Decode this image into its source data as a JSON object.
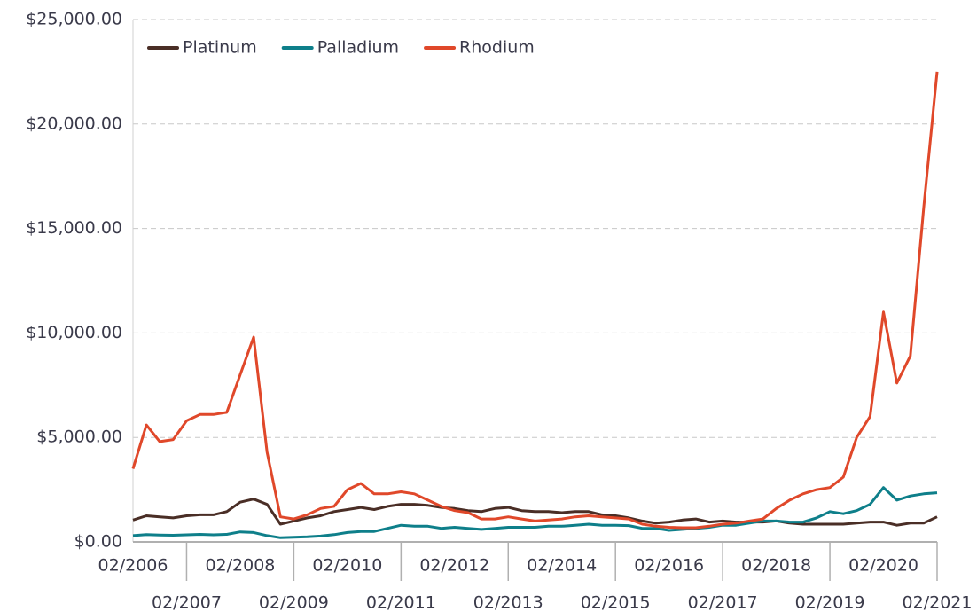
{
  "chart_data": {
    "type": "line",
    "categories": [
      "02/2006",
      null,
      null,
      null,
      "02/2007",
      null,
      null,
      null,
      "02/2008",
      null,
      null,
      null,
      "02/2009",
      null,
      null,
      null,
      "02/2010",
      null,
      null,
      null,
      "02/2011",
      null,
      null,
      null,
      "02/2012",
      null,
      null,
      null,
      "02/2013",
      null,
      null,
      null,
      "02/2014",
      null,
      null,
      null,
      "02/2015",
      null,
      null,
      null,
      "02/2016",
      null,
      null,
      null,
      "02/2017",
      null,
      null,
      null,
      "02/2018",
      null,
      null,
      null,
      "02/2019",
      null,
      null,
      null,
      "02/2020",
      null,
      null,
      null,
      "02/2021"
    ],
    "series": [
      {
        "name": "Platinum",
        "color": "#4a2e26",
        "values": [
          1050,
          1250,
          1200,
          1150,
          1250,
          1300,
          1300,
          1450,
          1900,
          2050,
          1800,
          850,
          1000,
          1150,
          1250,
          1450,
          1550,
          1650,
          1550,
          1700,
          1800,
          1800,
          1750,
          1650,
          1600,
          1500,
          1450,
          1600,
          1650,
          1500,
          1450,
          1450,
          1400,
          1450,
          1450,
          1300,
          1250,
          1150,
          1000,
          900,
          950,
          1050,
          1100,
          950,
          1000,
          950,
          950,
          950,
          1000,
          900,
          850,
          850,
          850,
          850,
          900,
          950,
          950,
          800,
          900,
          900,
          1200
        ]
      },
      {
        "name": "Palladium",
        "color": "#0e7f8a",
        "values": [
          300,
          350,
          330,
          320,
          340,
          360,
          340,
          360,
          480,
          450,
          300,
          200,
          220,
          240,
          280,
          350,
          450,
          500,
          500,
          650,
          800,
          750,
          750,
          650,
          700,
          650,
          600,
          650,
          700,
          700,
          700,
          750,
          750,
          800,
          850,
          800,
          800,
          780,
          650,
          650,
          550,
          600,
          650,
          700,
          800,
          800,
          900,
          1000,
          1000,
          950,
          950,
          1150,
          1450,
          1350,
          1500,
          1800,
          2600,
          2000,
          2200,
          2300,
          2350
        ]
      },
      {
        "name": "Rhodium",
        "color": "#e0482a",
        "values": [
          3500,
          5600,
          4800,
          4900,
          5800,
          6100,
          6100,
          6200,
          8000,
          9800,
          4300,
          1200,
          1100,
          1300,
          1600,
          1700,
          2500,
          2800,
          2300,
          2300,
          2400,
          2300,
          2000,
          1700,
          1500,
          1400,
          1100,
          1100,
          1200,
          1100,
          1000,
          1050,
          1100,
          1200,
          1250,
          1200,
          1150,
          1100,
          850,
          750,
          700,
          680,
          680,
          750,
          850,
          900,
          1000,
          1100,
          1600,
          2000,
          2300,
          2500,
          2600,
          3100,
          5000,
          6000,
          11000,
          7600,
          8900,
          16000,
          22500
        ]
      }
    ],
    "ylim": [
      0,
      25000
    ],
    "yticks": [
      {
        "value": 0,
        "label": "$0.00"
      },
      {
        "value": 5000,
        "label": "$5,000.00"
      },
      {
        "value": 10000,
        "label": "$10,000.00"
      },
      {
        "value": 15000,
        "label": "$15,000.00"
      },
      {
        "value": 20000,
        "label": "$20,000.00"
      },
      {
        "value": 25000,
        "label": "$25,000.00"
      }
    ],
    "grid": true,
    "legend": "top-left"
  }
}
